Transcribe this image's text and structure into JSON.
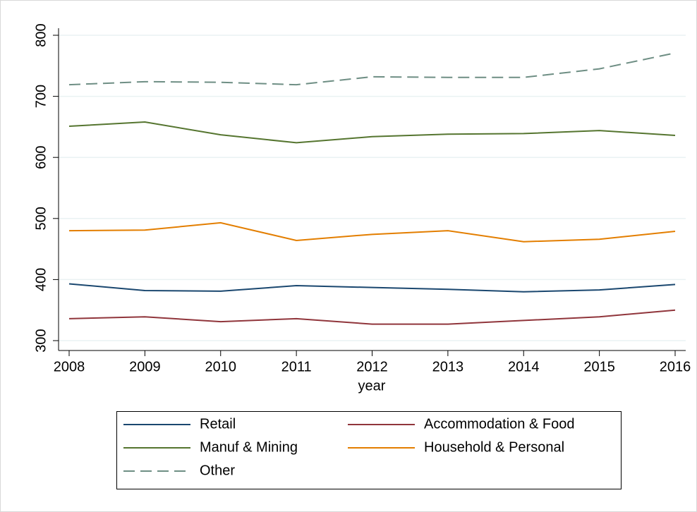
{
  "chart_data": {
    "type": "line",
    "x_label": "year",
    "x": [
      2008,
      2009,
      2010,
      2011,
      2012,
      2013,
      2014,
      2015,
      2016
    ],
    "xlim": [
      2008,
      2016
    ],
    "xticks": [
      2008,
      2009,
      2010,
      2011,
      2012,
      2013,
      2014,
      2015,
      2016
    ],
    "ylim": [
      300,
      800
    ],
    "yticks": [
      300,
      400,
      500,
      600,
      700,
      800
    ],
    "grid": true,
    "legend": "bottom",
    "series": [
      {
        "name": "Retail",
        "color": "#1a476f",
        "dashed": false,
        "values": [
          393,
          382,
          381,
          390,
          387,
          384,
          380,
          383,
          392
        ]
      },
      {
        "name": "Accommodation & Food",
        "color": "#90353b",
        "dashed": false,
        "values": [
          336,
          339,
          331,
          336,
          327,
          327,
          333,
          339,
          350
        ]
      },
      {
        "name": "Manuf & Mining",
        "color": "#55752f",
        "dashed": false,
        "values": [
          651,
          658,
          637,
          624,
          634,
          638,
          639,
          644,
          636
        ]
      },
      {
        "name": "Household & Personal",
        "color": "#e37e00",
        "dashed": false,
        "values": [
          480,
          481,
          493,
          464,
          474,
          480,
          462,
          466,
          479
        ]
      },
      {
        "name": "Other",
        "color": "#6e8e84",
        "dashed": true,
        "values": [
          719,
          724,
          723,
          719,
          732,
          731,
          731,
          745,
          771
        ]
      }
    ]
  }
}
